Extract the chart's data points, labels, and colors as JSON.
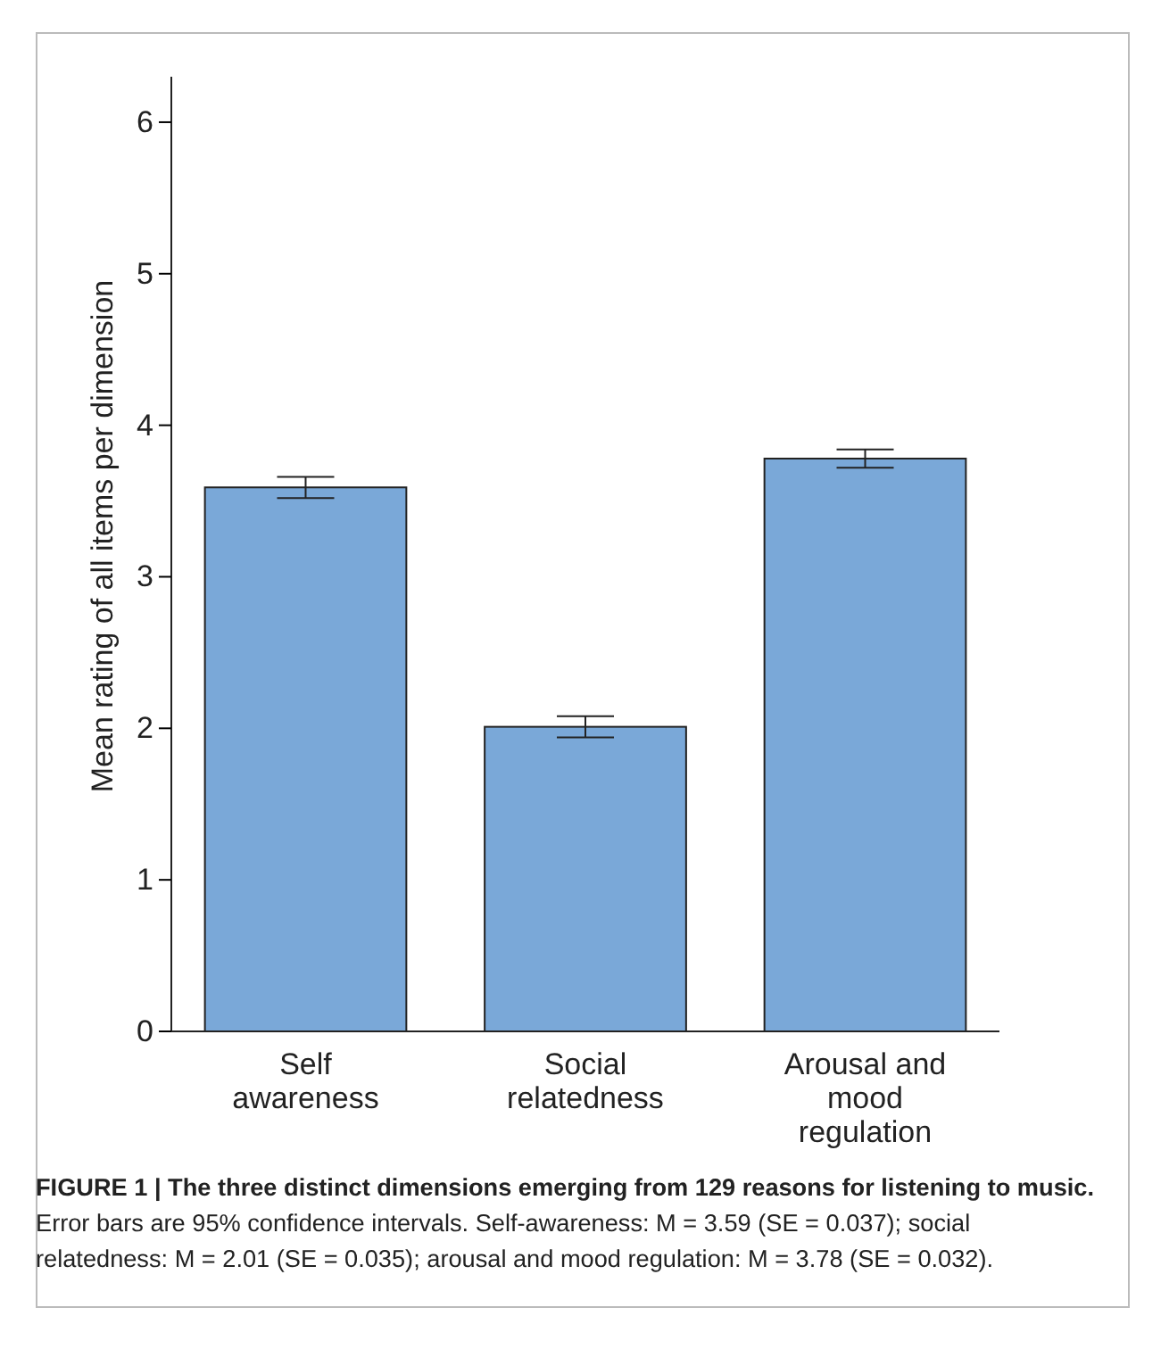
{
  "chart_data": {
    "type": "bar",
    "title": "FIGURE 1 | The three distinct dimensions emerging from 129 reasons for listening to music.",
    "ylabel": "Mean rating of all items per dimension",
    "categories": [
      "Self awareness",
      "Social relatedness",
      "Arousal and mood regulation"
    ],
    "values": [
      3.59,
      2.01,
      3.78
    ],
    "errors": [
      0.07,
      0.07,
      0.06
    ],
    "color": "#7aa8d8",
    "ylim": [
      0,
      6.3
    ],
    "yticks": [
      0,
      1,
      2,
      3,
      4,
      5,
      6
    ],
    "grid": false,
    "annotations": [
      "Error bars are 95% confidence intervals. Self-awareness: M = 3.59 (SE = 0.037); social relatedness: M = 2.01 (SE = 0.035); arousal and mood regulation: M = 3.78 (SE = 0.032)."
    ]
  }
}
